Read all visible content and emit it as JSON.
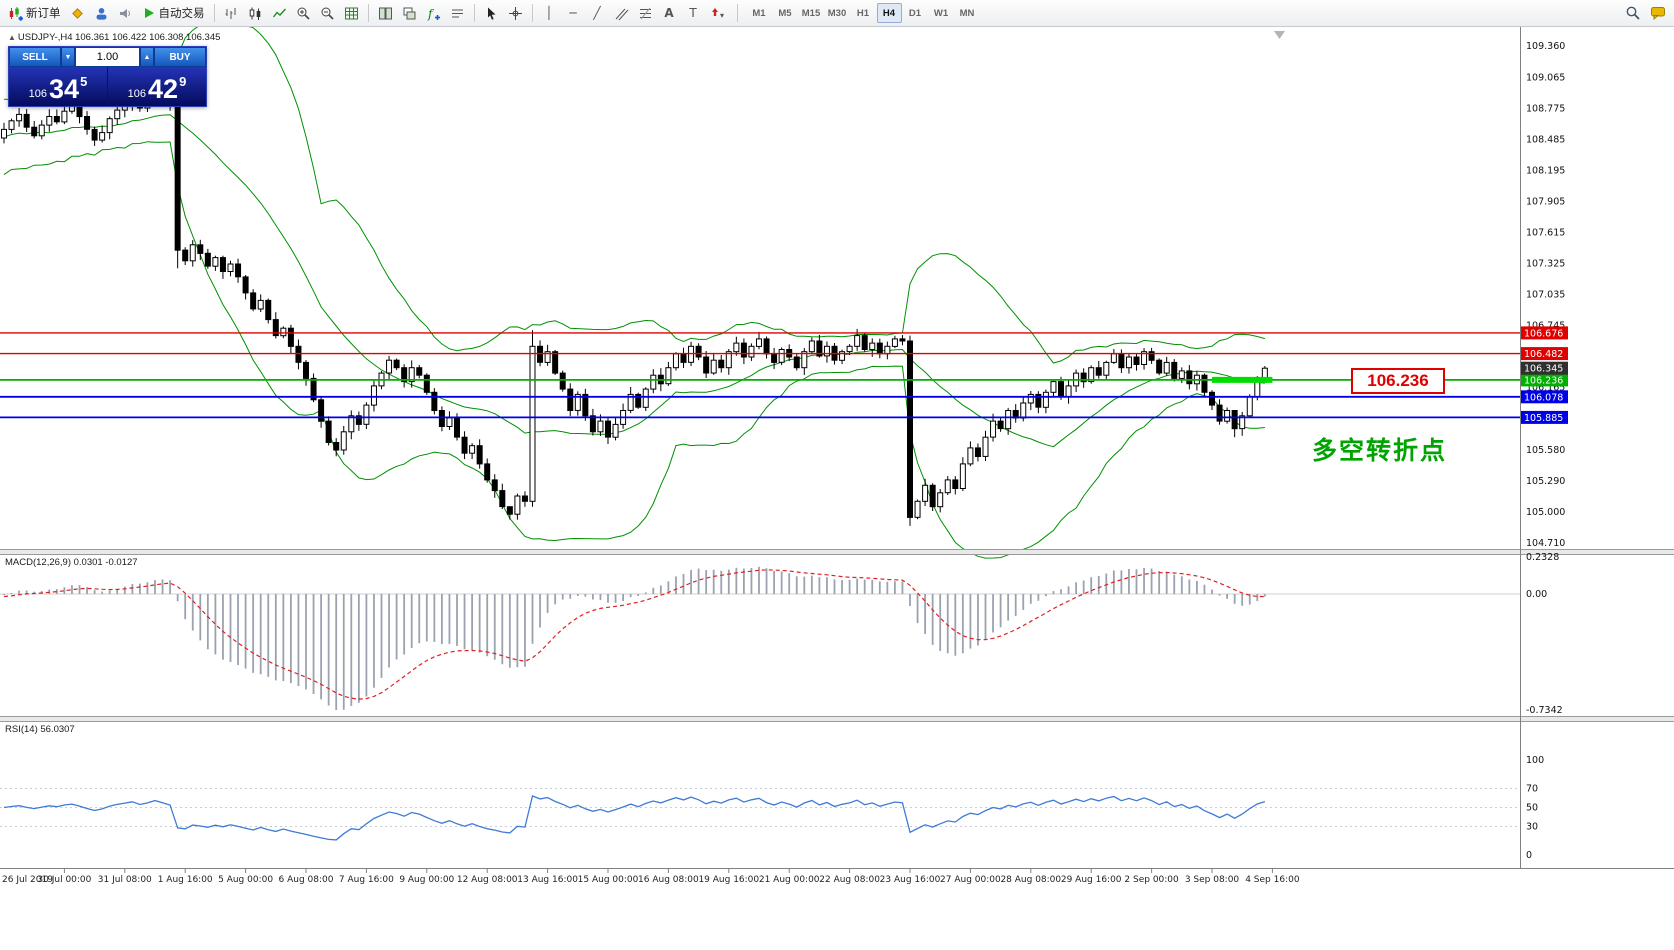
{
  "toolbar": {
    "new_order_label": "新订单",
    "autotrading_label": "自动交易",
    "timeframes": [
      "M1",
      "M5",
      "M15",
      "M30",
      "H1",
      "H4",
      "D1",
      "W1",
      "MN"
    ],
    "active_timeframe": "H4"
  },
  "chart": {
    "symbol_marker": "▲",
    "symbol_info": "USDJPY-,H4 106.361 106.422 106.308 106.345",
    "trade_panel": {
      "sell_label": "SELL",
      "buy_label": "BUY",
      "volume": "1.00",
      "sell_price_prefix": "106",
      "sell_price_main": "34",
      "sell_price_sup": "5",
      "buy_price_prefix": "106",
      "buy_price_main": "42",
      "buy_price_sup": "9"
    },
    "annotation_price": "106.236",
    "annotation_text": "多空转折点",
    "current_price": "106.345",
    "hlines": [
      {
        "price": 106.676,
        "color": "#e00000",
        "label": "106.676"
      },
      {
        "price": 106.482,
        "color": "#e00000",
        "label": "106.482"
      },
      {
        "price": 106.236,
        "color": "#00b000",
        "label": "106.236"
      },
      {
        "price": 106.078,
        "color": "#0000e8",
        "label": "106.078"
      },
      {
        "price": 105.885,
        "color": "#0000e8",
        "label": "105.885"
      }
    ],
    "highlight_segment": {
      "price": 106.236,
      "bar_start": 160,
      "bar_end": 168,
      "color": "#00dd00"
    },
    "price_axis_labels": [
      "109.360",
      "109.065",
      "108.775",
      "108.485",
      "108.195",
      "107.905",
      "107.615",
      "107.325",
      "107.035",
      "106.745",
      "106.455",
      "106.165",
      "105.875",
      "105.580",
      "105.290",
      "105.000",
      "104.710"
    ],
    "time_axis_labels": [
      "26 Jul 2019",
      "30 Jul 00:00",
      "31 Jul 08:00",
      "1 Aug 16:00",
      "5 Aug 00:00",
      "6 Aug 08:00",
      "7 Aug 16:00",
      "9 Aug 00:00",
      "12 Aug 08:00",
      "13 Aug 16:00",
      "15 Aug 00:00",
      "16 Aug 08:00",
      "19 Aug 16:00",
      "21 Aug 00:00",
      "22 Aug 08:00",
      "23 Aug 16:00",
      "27 Aug 00:00",
      "28 Aug 08:00",
      "29 Aug 16:00",
      "2 Sep 00:00",
      "3 Sep 08:00",
      "4 Sep 16:00"
    ]
  },
  "macd": {
    "label": "MACD(12,26,9) 0.0301 -0.0127",
    "axis_labels": [
      "0.2328",
      "0.00",
      "-0.7342"
    ]
  },
  "rsi": {
    "label": "RSI(14) 56.0307",
    "axis_labels": [
      "100",
      "70",
      "50",
      "30",
      "0"
    ],
    "levels": [
      70,
      50,
      30
    ]
  },
  "chart_data": {
    "type": "candlestick-ohlc",
    "symbol": "USDJPY",
    "timeframe": "H4",
    "ohlc_last": {
      "open": 106.361,
      "high": 106.422,
      "low": 106.308,
      "close": 106.345
    },
    "y_range": [
      104.71,
      109.36
    ],
    "closes": [
      108.58,
      108.66,
      108.72,
      108.6,
      108.52,
      108.62,
      108.7,
      108.65,
      108.75,
      108.8,
      108.7,
      108.58,
      108.48,
      108.55,
      108.68,
      108.76,
      108.82,
      108.88,
      108.78,
      108.85,
      108.95,
      108.88,
      108.8,
      107.45,
      107.35,
      107.5,
      107.42,
      107.3,
      107.38,
      107.25,
      107.32,
      107.2,
      107.05,
      106.9,
      106.98,
      106.8,
      106.65,
      106.72,
      106.55,
      106.4,
      106.25,
      106.05,
      105.85,
      105.65,
      105.58,
      105.75,
      105.9,
      105.82,
      106.0,
      106.18,
      106.3,
      106.42,
      106.35,
      106.22,
      106.35,
      106.28,
      106.12,
      105.95,
      105.8,
      105.88,
      105.7,
      105.55,
      105.62,
      105.45,
      105.3,
      105.2,
      105.05,
      104.98,
      105.15,
      105.1,
      106.55,
      106.4,
      106.5,
      106.3,
      106.15,
      105.95,
      106.1,
      105.9,
      105.75,
      105.85,
      105.7,
      105.82,
      105.95,
      106.1,
      105.98,
      106.15,
      106.28,
      106.2,
      106.35,
      106.48,
      106.4,
      106.55,
      106.45,
      106.3,
      106.42,
      106.35,
      106.5,
      106.58,
      106.45,
      106.55,
      106.62,
      106.48,
      106.4,
      106.52,
      106.45,
      106.35,
      106.5,
      106.6,
      106.46,
      106.55,
      106.42,
      106.5,
      106.55,
      106.65,
      106.52,
      106.58,
      106.48,
      106.55,
      106.62,
      106.6,
      104.95,
      105.1,
      105.25,
      105.05,
      105.18,
      105.3,
      105.22,
      105.45,
      105.6,
      105.52,
      105.7,
      105.85,
      105.78,
      105.95,
      105.88,
      106.02,
      106.1,
      105.98,
      106.12,
      106.22,
      106.08,
      106.18,
      106.3,
      106.22,
      106.35,
      106.28,
      106.4,
      106.48,
      106.35,
      106.45,
      106.38,
      106.5,
      106.42,
      106.3,
      106.4,
      106.25,
      106.32,
      106.2,
      106.28,
      106.12,
      106.0,
      105.85,
      105.95,
      105.78,
      105.9,
      106.08,
      106.25,
      106.345
    ],
    "wick_overrides": {
      "20": [
        109.0,
        108.8
      ],
      "23": [
        108.85,
        107.28
      ],
      "67": [
        105.05,
        104.93
      ],
      "70": [
        106.7,
        105.05
      ],
      "120": [
        106.65,
        104.87
      ],
      "163": [
        105.95,
        105.7
      ]
    },
    "warmup_closes": [
      108.6,
      108.2,
      108.45,
      108.75,
      108.3,
      108.55,
      108.8,
      108.35,
      108.6,
      108.25,
      108.7,
      108.4,
      108.65,
      108.3,
      108.75,
      108.45,
      108.6,
      108.35,
      108.65,
      108.5
    ],
    "indicators": [
      {
        "name": "Bollinger Bands",
        "period": 20,
        "deviation": 2,
        "color": "#009000"
      },
      {
        "name": "MACD",
        "fast": 12,
        "slow": 26,
        "signal": 9,
        "current_values": [
          0.0301,
          -0.0127
        ],
        "axis_range": [
          -0.7342,
          0.2328
        ]
      },
      {
        "name": "RSI",
        "period": 14,
        "current_value": 56.0307
      }
    ]
  }
}
